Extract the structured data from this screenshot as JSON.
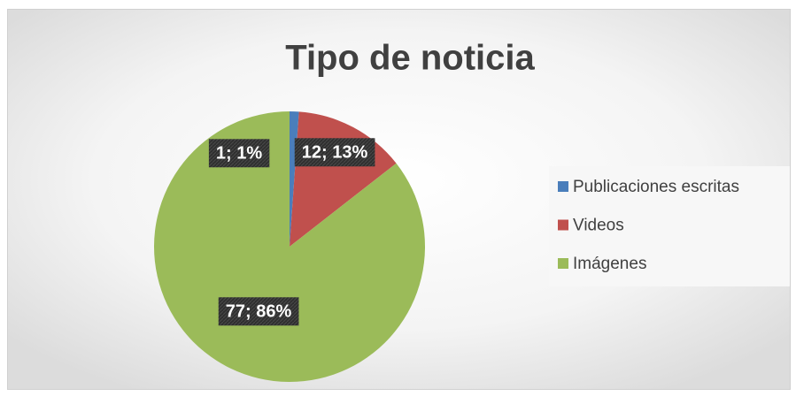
{
  "chart_data": {
    "type": "pie",
    "title": "Tipo de noticia",
    "categories": [
      "Publicaciones escritas",
      "Videos",
      "Imágenes"
    ],
    "values": [
      1,
      12,
      77
    ],
    "value_labels": [
      "1; 1%",
      "12; 13%",
      "77; 86%"
    ],
    "colors": [
      "#4a7ebb",
      "#c0504d",
      "#9bbb59"
    ],
    "legend": "right"
  }
}
